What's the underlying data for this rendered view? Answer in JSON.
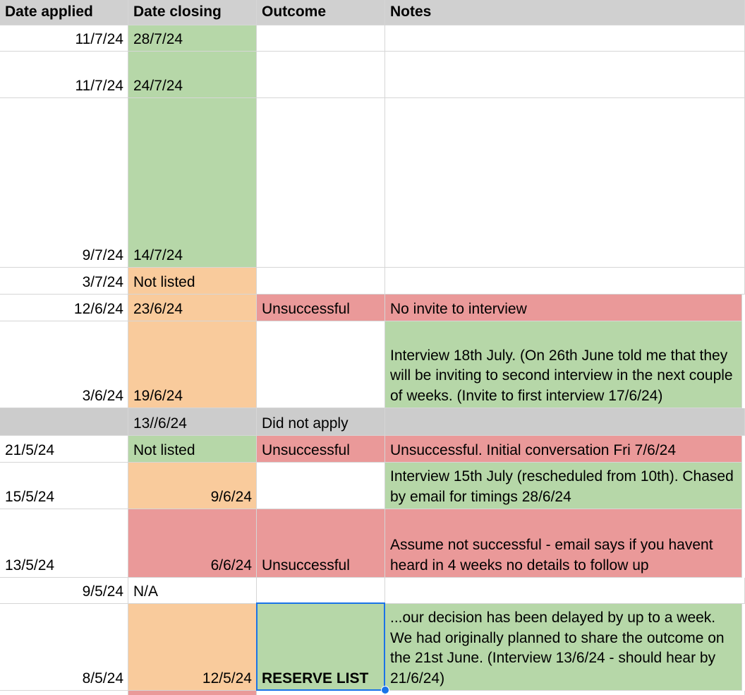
{
  "header": {
    "date_applied": "Date applied",
    "date_closing": "Date closing",
    "outcome": "Outcome",
    "notes": "Notes"
  },
  "rows": [
    {
      "applied": "11/7/24",
      "closing": "28/7/24",
      "outcome": "",
      "notes": ""
    },
    {
      "applied": "11/7/24",
      "closing": "24/7/24",
      "outcome": "",
      "notes": ""
    },
    {
      "applied": "9/7/24",
      "closing": "14/7/24",
      "outcome": "",
      "notes": ""
    },
    {
      "applied": "3/7/24",
      "closing": "Not listed",
      "outcome": "",
      "notes": ""
    },
    {
      "applied": "12/6/24",
      "closing": "23/6/24",
      "outcome": "Unsuccessful",
      "notes": "No invite to interview"
    },
    {
      "applied": "3/6/24",
      "closing": "19/6/24",
      "outcome": "",
      "notes": "Interview 18th July. (On 26th June told me that they will be inviting to second interview in the next couple of weeks. (Invite to first interview 17/6/24)"
    },
    {
      "applied": "",
      "closing": "13//6/24",
      "outcome": "Did not apply",
      "notes": ""
    },
    {
      "applied": "21/5/24",
      "closing": "Not listed",
      "outcome": "Unsuccessful",
      "notes": "Unsuccessful. Initial conversation Fri 7/6/24"
    },
    {
      "applied": "15/5/24",
      "closing": "9/6/24",
      "outcome": "",
      "notes": "Interview 15th July (rescheduled from 10th). Chased by email for timings 28/6/24"
    },
    {
      "applied": "13/5/24",
      "closing": "6/6/24",
      "outcome": "Unsuccessful",
      "notes": "Assume not successful - email says if you havent heard in 4 weeks no details to follow up"
    },
    {
      "applied": "9/5/24",
      "closing": "N/A",
      "outcome": "",
      "notes": ""
    },
    {
      "applied": "8/5/24",
      "closing": "12/5/24",
      "outcome": "RESERVE LIST",
      "notes": "...our decision has been delayed by up to a week. We had originally planned to share the outcome on the 21st June. (Interview 13/6/24 - should hear by 21/6/24)"
    }
  ],
  "colors": {
    "green": "#b6d7a8",
    "orange": "#f9cb9c",
    "red": "#ea9999",
    "gray": "#cccccc",
    "header": "#d0d0d0",
    "selection": "#1a73e8"
  }
}
